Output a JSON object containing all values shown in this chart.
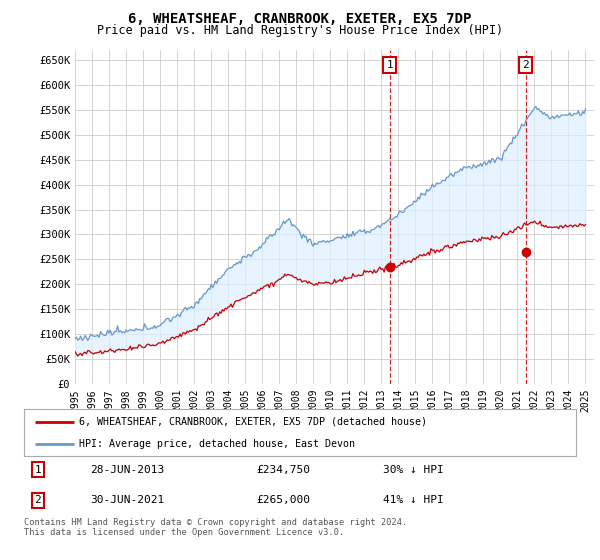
{
  "title": "6, WHEATSHEAF, CRANBROOK, EXETER, EX5 7DP",
  "subtitle": "Price paid vs. HM Land Registry's House Price Index (HPI)",
  "xlim": [
    1995.0,
    2025.5
  ],
  "ylim": [
    0,
    670000
  ],
  "yticks": [
    0,
    50000,
    100000,
    150000,
    200000,
    250000,
    300000,
    350000,
    400000,
    450000,
    500000,
    550000,
    600000,
    650000
  ],
  "ytick_labels": [
    "£0",
    "£50K",
    "£100K",
    "£150K",
    "£200K",
    "£250K",
    "£300K",
    "£350K",
    "£400K",
    "£450K",
    "£500K",
    "£550K",
    "£600K",
    "£650K"
  ],
  "xtick_years": [
    1995,
    1996,
    1997,
    1998,
    1999,
    2000,
    2001,
    2002,
    2003,
    2004,
    2005,
    2006,
    2007,
    2008,
    2009,
    2010,
    2011,
    2012,
    2013,
    2014,
    2015,
    2016,
    2017,
    2018,
    2019,
    2020,
    2021,
    2022,
    2023,
    2024,
    2025
  ],
  "hpi_color": "#6699cc",
  "price_color": "#cc0000",
  "fill_color": "#ddeeff",
  "marker1_x": 2013.5,
  "marker1_y": 234750,
  "marker1_label": "1",
  "marker1_date": "28-JUN-2013",
  "marker1_price": "£234,750",
  "marker1_hpi": "30% ↓ HPI",
  "marker2_x": 2021.5,
  "marker2_y": 265000,
  "marker2_label": "2",
  "marker2_date": "30-JUN-2021",
  "marker2_price": "£265,000",
  "marker2_hpi": "41% ↓ HPI",
  "legend_line1": "6, WHEATSHEAF, CRANBROOK, EXETER, EX5 7DP (detached house)",
  "legend_line2": "HPI: Average price, detached house, East Devon",
  "footer": "Contains HM Land Registry data © Crown copyright and database right 2024.\nThis data is licensed under the Open Government Licence v3.0.",
  "background_color": "#ffffff",
  "grid_color": "#cccccc"
}
